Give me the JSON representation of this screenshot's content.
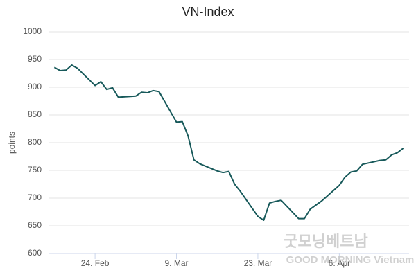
{
  "chart_data": {
    "type": "line",
    "title": "VN-Index",
    "y_label": "points",
    "x": [
      "02-17",
      "02-18",
      "02-19",
      "02-20",
      "02-21",
      "02-24",
      "02-25",
      "02-26",
      "02-27",
      "02-28",
      "03-02",
      "03-03",
      "03-04",
      "03-05",
      "03-06",
      "03-09",
      "03-10",
      "03-11",
      "03-12",
      "03-13",
      "03-16",
      "03-17",
      "03-18",
      "03-19",
      "03-20",
      "03-23",
      "03-24",
      "03-25",
      "03-26",
      "03-27",
      "03-30",
      "03-31",
      "04-01",
      "04-03",
      "04-06",
      "04-07",
      "04-08",
      "04-09",
      "04-10",
      "04-13",
      "04-14",
      "04-15",
      "04-16",
      "04-17"
    ],
    "series": [
      {
        "name": "VN-Index",
        "color": "#17595a",
        "values": [
          936,
          930,
          931,
          940,
          934,
          903,
          910,
          896,
          899,
          882,
          884,
          891,
          890,
          894,
          892,
          837,
          838,
          812,
          769,
          762,
          749,
          746,
          748,
          725,
          712,
          667,
          660,
          691,
          694,
          696,
          663,
          663,
          680,
          695,
          723,
          738,
          747,
          749,
          761,
          768,
          769,
          778,
          782,
          790
        ]
      }
    ],
    "xlim": [
      "02-16",
      "04-18"
    ],
    "xticks": [
      {
        "value": "02-24",
        "label": "24. Feb"
      },
      {
        "value": "03-09",
        "label": "9. Mar"
      },
      {
        "value": "03-23",
        "label": "23. Mar"
      },
      {
        "value": "04-06",
        "label": "6. Apr"
      }
    ],
    "ylim": [
      600,
      1000
    ],
    "yticks": [
      600,
      650,
      700,
      750,
      800,
      850,
      900,
      950,
      1000
    ],
    "grid": true,
    "watermark": [
      "굿모닝베트남",
      "GOOD MORNING Vietnam"
    ]
  }
}
